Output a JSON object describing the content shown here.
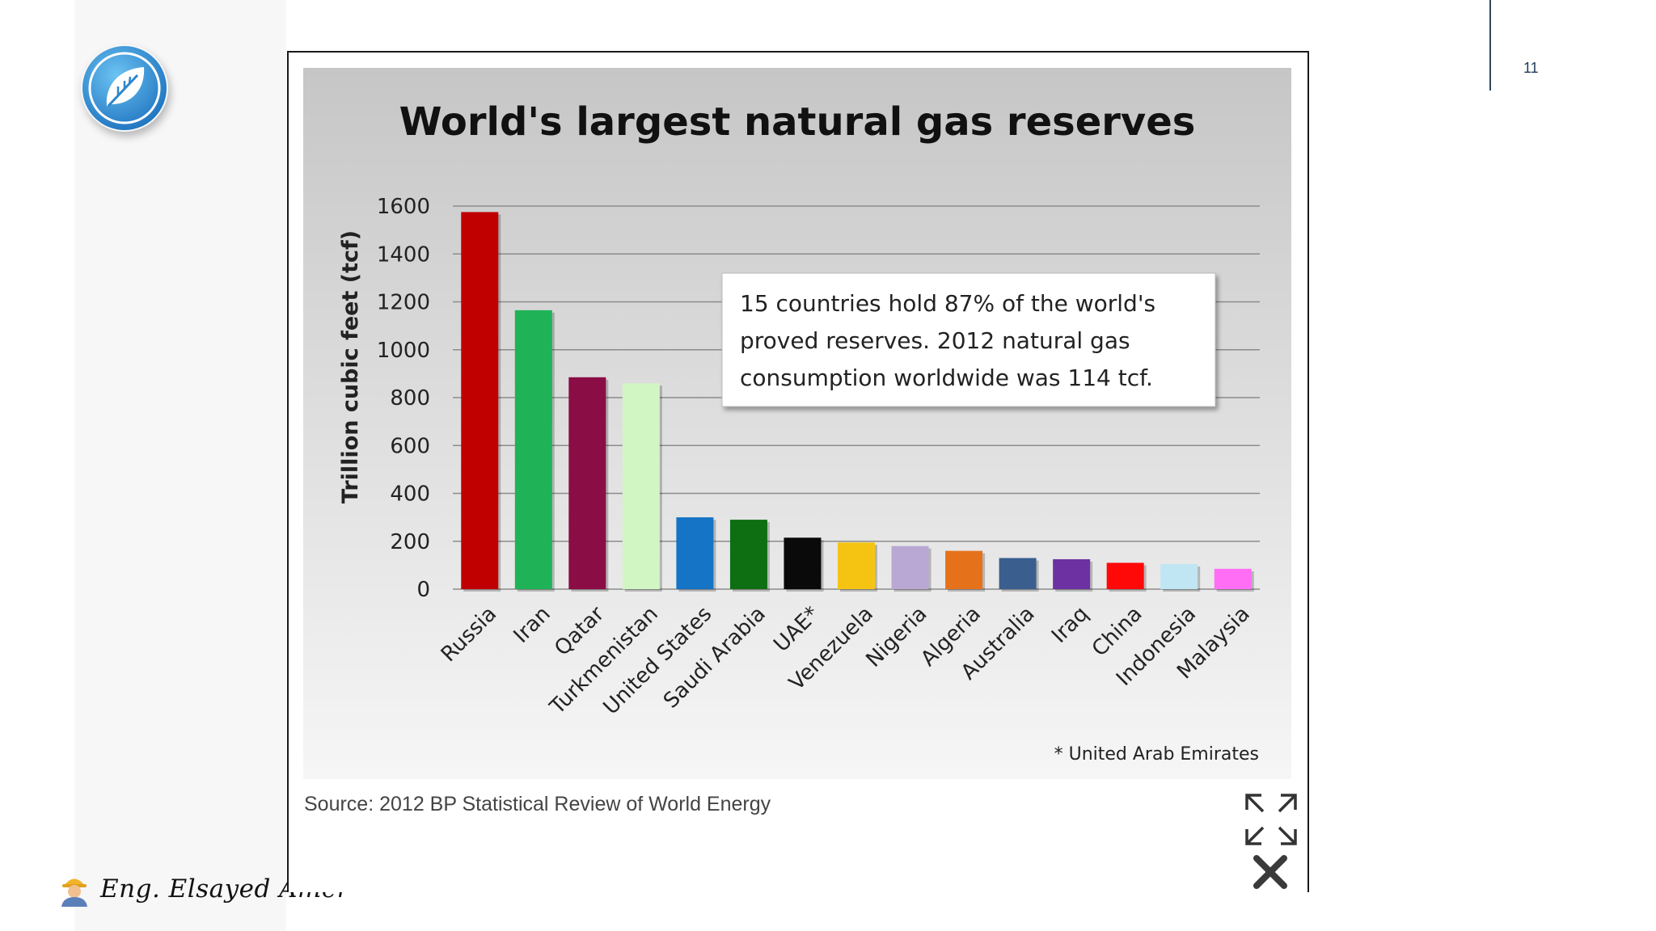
{
  "slide": {
    "page_number": "11",
    "author": "Eng. Elsayed Amer",
    "source": "Source: 2012 BP Statistical Review of World Energy"
  },
  "icons": {
    "logo": "leaf-logo-icon",
    "author": "worker-emoji-icon",
    "expand": "expand-icon",
    "close": "close-icon"
  },
  "colors": {
    "accent": "#2f86c9",
    "rule": "#33485d"
  },
  "chart_data": {
    "type": "bar",
    "title": "World's largest natural gas reserves",
    "ylabel": "Trillion cubic feet (tcf)",
    "xlabel": "",
    "ylim": [
      0,
      1600
    ],
    "yticks": [
      0,
      200,
      400,
      600,
      800,
      1000,
      1200,
      1400,
      1600
    ],
    "grid": true,
    "categories": [
      "Russia",
      "Iran",
      "Qatar",
      "Turkmenistan",
      "United States",
      "Saudi Arabia",
      "UAE*",
      "Venezuela",
      "Nigeria",
      "Algeria",
      "Australia",
      "Iraq",
      "China",
      "Indonesia",
      "Malaysia"
    ],
    "values": [
      1575,
      1165,
      885,
      860,
      300,
      290,
      215,
      195,
      180,
      160,
      130,
      125,
      110,
      105,
      85
    ],
    "bar_colors": [
      "#c00000",
      "#1fb256",
      "#8b0d46",
      "#d2f5c4",
      "#1574c5",
      "#0e6e12",
      "#0a0a0a",
      "#f5c413",
      "#b9a8d3",
      "#e5721b",
      "#3a5f8e",
      "#6d31a2",
      "#ff0808",
      "#bfe6f2",
      "#ff6ef5"
    ],
    "annotation": {
      "lines": [
        "15 countries hold 87% of the world's",
        "proved reserves.  2012 natural gas",
        "consumption worldwide was 114 tcf."
      ]
    },
    "footnote": "* United Arab Emirates"
  }
}
